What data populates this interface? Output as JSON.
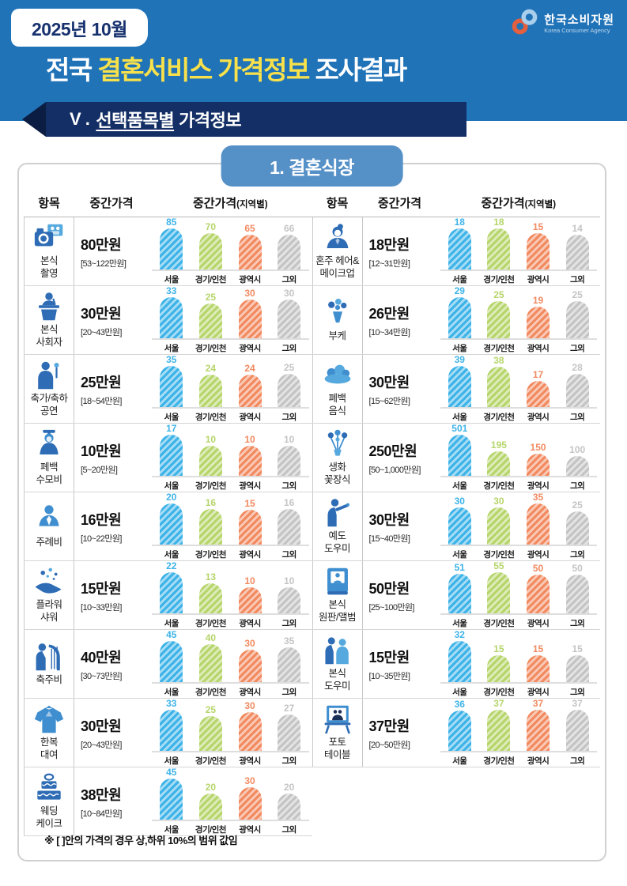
{
  "header": {
    "badge": "2025년 10월",
    "title": {
      "pre": "전국 ",
      "highlight": "결혼서비스 가격정보",
      "post": " 조사결과"
    },
    "logo": {
      "name": "한국소비자원",
      "subtitle": "Korea Consumer Agency"
    },
    "section": {
      "prefix": "V .",
      "underlined": "선택품목별",
      "rest": "가격정보"
    }
  },
  "panel": {
    "tab_title": "1. 결혼식장",
    "headers": {
      "item": "항목",
      "median": "중간가격",
      "regional": "중간가격",
      "regional_suffix": "(지역별)"
    },
    "footnote": "※ [ ]안의 가격의 경우 상,하위 10%의 범위 값임"
  },
  "colors": {
    "header_bg": "#2173b8",
    "section_navy": "#142f66",
    "title_yellow": "#f8e14a",
    "tab_blue": "#5590c7",
    "icon_blue": "#2e6cb5",
    "logo_orange": "#e2603f",
    "logo_lightblue": "#a9cfec",
    "region_bar_colors": [
      "#3db3e8",
      "#b6d56a",
      "#f28a60",
      "#c4c4c4"
    ]
  },
  "chart_data": {
    "type": "bar",
    "categories": [
      "서울",
      "경기/인천",
      "광역시",
      "그외"
    ],
    "unit": "만원",
    "charts_left": [
      {
        "title": "본식 촬영",
        "label_lines": [
          "본식",
          "촬영"
        ],
        "icon": "camera-icon",
        "median": "80만원",
        "range": "[53~122만원]",
        "values": [
          85,
          70,
          65,
          66
        ]
      },
      {
        "title": "본식 사회자",
        "label_lines": [
          "본식",
          "사회자"
        ],
        "icon": "emcee-icon",
        "median": "30만원",
        "range": "[20~43만원]",
        "values": [
          33,
          25,
          30,
          30
        ]
      },
      {
        "title": "축가/축하 공연",
        "label_lines": [
          "축가/축하",
          "공연"
        ],
        "icon": "singer-icon",
        "median": "25만원",
        "range": "[18~54만원]",
        "values": [
          35,
          24,
          24,
          25
        ]
      },
      {
        "title": "폐백 수모비",
        "label_lines": [
          "폐백",
          "수모비"
        ],
        "icon": "traditional-woman-icon",
        "median": "10만원",
        "range": "[5~20만원]",
        "values": [
          17,
          10,
          10,
          10
        ]
      },
      {
        "title": "주례비",
        "label_lines": [
          "주례비"
        ],
        "icon": "officiant-icon",
        "median": "16만원",
        "range": "[10~22만원]",
        "values": [
          20,
          16,
          15,
          16
        ]
      },
      {
        "title": "플라워 샤워",
        "label_lines": [
          "플라워",
          "샤워"
        ],
        "icon": "flower-shower-icon",
        "median": "15만원",
        "range": "[10~33만원]",
        "values": [
          22,
          13,
          10,
          10
        ]
      },
      {
        "title": "축주비",
        "label_lines": [
          "축주비"
        ],
        "icon": "harpist-icon",
        "median": "40만원",
        "range": "[30~73만원]",
        "values": [
          45,
          40,
          30,
          35
        ]
      },
      {
        "title": "한복 대여",
        "label_lines": [
          "한복",
          "대여"
        ],
        "icon": "hanbok-icon",
        "median": "30만원",
        "range": "[20~43만원]",
        "values": [
          33,
          25,
          30,
          27
        ]
      },
      {
        "title": "웨딩 케이크",
        "label_lines": [
          "웨딩",
          "케이크"
        ],
        "icon": "cake-icon",
        "median": "38만원",
        "range": "[10~84만원]",
        "values": [
          45,
          20,
          30,
          20
        ]
      }
    ],
    "charts_right": [
      {
        "title": "혼주 헤어&메이크업",
        "label_lines": [
          "혼주 헤어&",
          "메이크업"
        ],
        "icon": "hair-makeup-icon",
        "median": "18만원",
        "range": "[12~31만원]",
        "values": [
          18,
          18,
          15,
          14
        ]
      },
      {
        "title": "부케",
        "label_lines": [
          "부케"
        ],
        "icon": "bouquet-icon",
        "median": "26만원",
        "range": "[10~34만원]",
        "values": [
          29,
          25,
          19,
          25
        ]
      },
      {
        "title": "폐백 음식",
        "label_lines": [
          "폐백",
          "음식"
        ],
        "icon": "food-icon",
        "median": "30만원",
        "range": "[15~62만원]",
        "values": [
          39,
          38,
          17,
          28
        ]
      },
      {
        "title": "생화 꽃장식",
        "label_lines": [
          "생화",
          "꽃장식"
        ],
        "icon": "flower-decoration-icon",
        "median": "250만원",
        "range": "[50~1,000만원]",
        "values": [
          501,
          195,
          150,
          100
        ]
      },
      {
        "title": "예도 도우미",
        "label_lines": [
          "예도",
          "도우미"
        ],
        "icon": "usher-icon",
        "median": "30만원",
        "range": "[15~40만원]",
        "values": [
          30,
          30,
          35,
          25
        ]
      },
      {
        "title": "본식 원판/앨범",
        "label_lines": [
          "본식",
          "원판/앨범"
        ],
        "icon": "album-icon",
        "median": "50만원",
        "range": "[25~100만원]",
        "values": [
          51,
          55,
          50,
          50
        ]
      },
      {
        "title": "본식 도우미",
        "label_lines": [
          "본식",
          "도우미"
        ],
        "icon": "helper-icon",
        "median": "15만원",
        "range": "[10~35만원]",
        "values": [
          32,
          15,
          15,
          15
        ]
      },
      {
        "title": "포토 테이블",
        "label_lines": [
          "포토",
          "테이블"
        ],
        "icon": "photo-table-icon",
        "median": "37만원",
        "range": "[20~50만원]",
        "values": [
          36,
          37,
          37,
          37
        ]
      }
    ]
  }
}
